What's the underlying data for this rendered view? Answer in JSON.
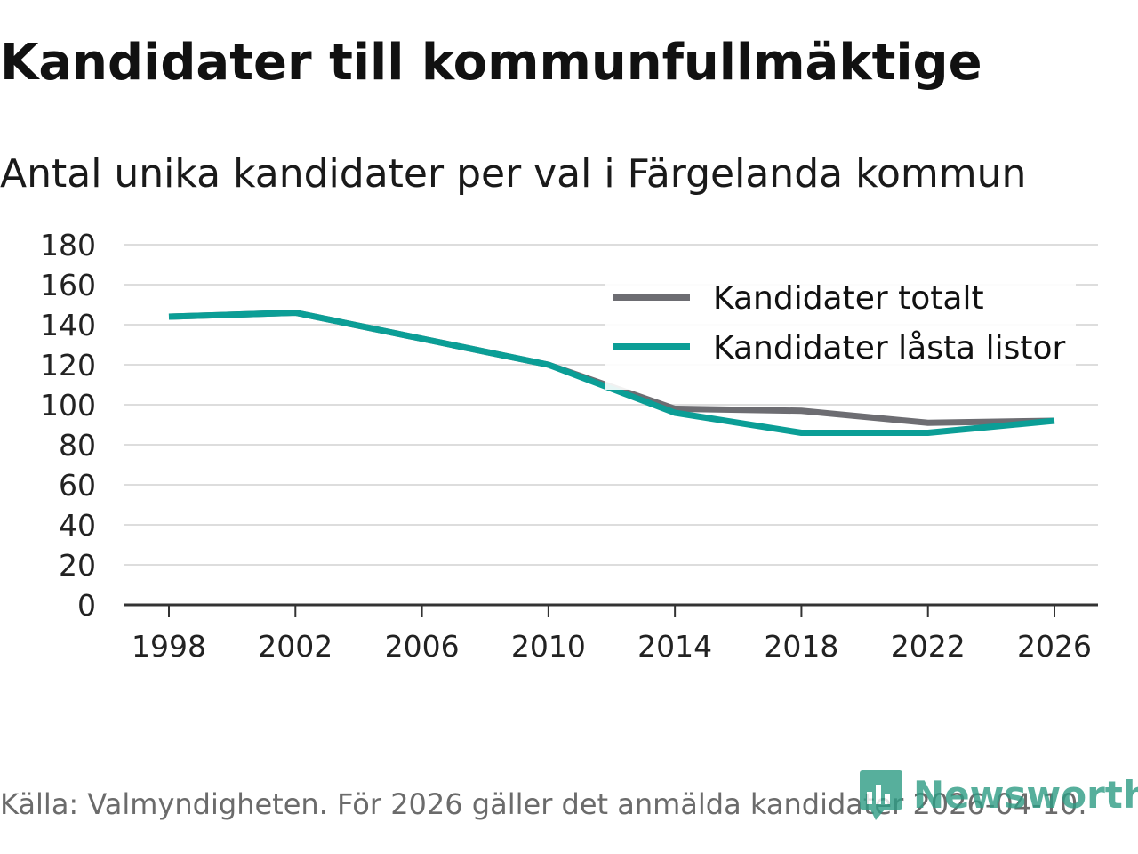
{
  "title": "Kandidater till kommunfullmäktige",
  "subtitle": "Antal unika kandidater per val i Färgelanda kommun",
  "source": "Källa: Valmyndigheten. För 2026 gäller det anmälda kandidater 2026-04-10.",
  "brand": "Newsworthy",
  "colors": {
    "series_total": "#6d6d72",
    "series_locked": "#0b9e96",
    "grid": "#dddddd",
    "axis": "#333333",
    "brand": "#2e9c84"
  },
  "chart_data": {
    "type": "line",
    "title": "Kandidater till kommunfullmäktige",
    "subtitle": "Antal unika kandidater per val i Färgelanda kommun",
    "xlabel": "",
    "ylabel": "",
    "x": [
      1998,
      2002,
      2006,
      2010,
      2014,
      2018,
      2022,
      2026
    ],
    "x_ticks": [
      "1998",
      "2002",
      "2006",
      "2010",
      "2014",
      "2018",
      "2022",
      "2026"
    ],
    "y_ticks": [
      0,
      20,
      40,
      60,
      80,
      100,
      120,
      140,
      160,
      180
    ],
    "ylim": [
      0,
      180
    ],
    "grid": true,
    "legend_position": "top-right",
    "series": [
      {
        "name": "Kandidater totalt",
        "color": "#6d6d72",
        "values": [
          144,
          146,
          133,
          120,
          98,
          97,
          91,
          92
        ]
      },
      {
        "name": "Kandidater låsta listor",
        "color": "#0b9e96",
        "values": [
          144,
          146,
          133,
          120,
          96,
          86,
          86,
          92
        ]
      }
    ]
  }
}
